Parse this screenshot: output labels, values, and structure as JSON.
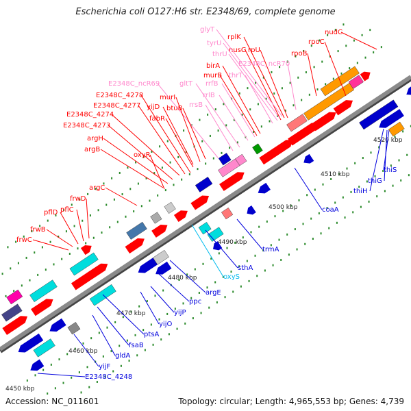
{
  "title": "Escherichia coli O127:H6 str. E2348/69, complete genome",
  "footer": {
    "accession": "Accession: NC_011601",
    "summary": "Topology: circular; Length: 4,965,553 bp; Genes: 4,739"
  },
  "colors": {
    "backbone": "#8a8a8a",
    "label_gene_red": "#ff0000",
    "label_rna_pink": "#ff88cc",
    "label_blue": "#0000dd",
    "label_cyan": "#00bbee",
    "tick_green": "#2a8a2a"
  },
  "kbp_labels": [
    "4450 kbp",
    "4460 kbp",
    "4470 kbp",
    "4480 kbp",
    "4490 kbp",
    "4500 kbp",
    "4510 kbp",
    "4520 kbp"
  ],
  "gene_labels": [
    {
      "text": "nudC",
      "color": "red"
    },
    {
      "text": "rpoC",
      "color": "red"
    },
    {
      "text": "rpoB",
      "color": "red"
    },
    {
      "text": "rplK",
      "color": "red"
    },
    {
      "text": "nusG",
      "color": "red"
    },
    {
      "text": "rpU",
      "color": "red"
    },
    {
      "text": "glyT",
      "color": "pink"
    },
    {
      "text": "tyrU",
      "color": "pink"
    },
    {
      "text": "thrU",
      "color": "pink"
    },
    {
      "text": "E2348C_ncR70",
      "color": "pink"
    },
    {
      "text": "thrT",
      "color": "pink"
    },
    {
      "text": "birA",
      "color": "red"
    },
    {
      "text": "murB",
      "color": "red"
    },
    {
      "text": "rrfB",
      "color": "pink"
    },
    {
      "text": "rrlB",
      "color": "pink"
    },
    {
      "text": "gltT",
      "color": "pink"
    },
    {
      "text": "rrsB",
      "color": "pink"
    },
    {
      "text": "E2348C_ncR69",
      "color": "pink"
    },
    {
      "text": "murI",
      "color": "red"
    },
    {
      "text": "btuB",
      "color": "red"
    },
    {
      "text": "yijD",
      "color": "red"
    },
    {
      "text": "fabR",
      "color": "red"
    },
    {
      "text": "E2348C_4278",
      "color": "red"
    },
    {
      "text": "E2348C_4277",
      "color": "red"
    },
    {
      "text": "E2348C_4274",
      "color": "red"
    },
    {
      "text": "E2348C_4273",
      "color": "red"
    },
    {
      "text": "argH",
      "color": "red"
    },
    {
      "text": "argB",
      "color": "red"
    },
    {
      "text": "oxyR",
      "color": "red"
    },
    {
      "text": "argC",
      "color": "red"
    },
    {
      "text": "frwD",
      "color": "red"
    },
    {
      "text": "pflC",
      "color": "red"
    },
    {
      "text": "pflD",
      "color": "red"
    },
    {
      "text": "frwB",
      "color": "red"
    },
    {
      "text": "frwC",
      "color": "red"
    },
    {
      "text": "coaA",
      "color": "blue"
    },
    {
      "text": "thiS",
      "color": "blue"
    },
    {
      "text": "thiG",
      "color": "blue"
    },
    {
      "text": "thiH",
      "color": "blue"
    },
    {
      "text": "trmA",
      "color": "blue"
    },
    {
      "text": "sthA",
      "color": "blue"
    },
    {
      "text": "oxyS",
      "color": "cyan"
    },
    {
      "text": "argE",
      "color": "blue"
    },
    {
      "text": "ppc",
      "color": "blue"
    },
    {
      "text": "yijP",
      "color": "blue"
    },
    {
      "text": "yijO",
      "color": "blue"
    },
    {
      "text": "ptsA",
      "color": "blue"
    },
    {
      "text": "fsaB",
      "color": "blue"
    },
    {
      "text": "gldA",
      "color": "blue"
    },
    {
      "text": "yijF",
      "color": "blue"
    },
    {
      "text": "E2348C_4248",
      "color": "blue"
    }
  ]
}
